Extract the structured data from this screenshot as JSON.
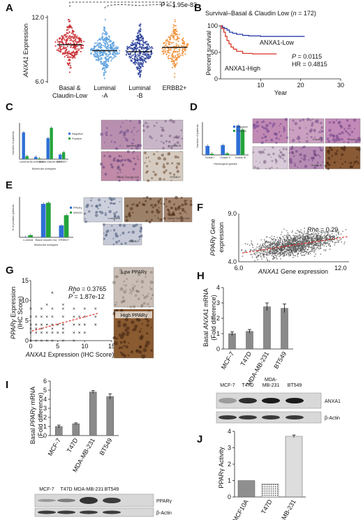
{
  "panels": [
    "A",
    "B",
    "C",
    "D",
    "E",
    "F",
    "G",
    "H",
    "I",
    "J"
  ],
  "panelA": {
    "ylabel_gene": "ANXA1",
    "ylabel_rest": " Expression",
    "yticks": [
      "12.0",
      "6.0"
    ],
    "pvalue": "P = 1.95e-83",
    "groups": [
      {
        "label1": "Basal &",
        "label2": "Claudin-Low",
        "color": "#c8282e",
        "median": 9.45,
        "n": 260
      },
      {
        "label1": "Luminal",
        "label2": "-A",
        "color": "#5aa0de",
        "median": 8.9,
        "n": 320
      },
      {
        "label1": "Luminal",
        "label2": "-B",
        "color": "#2a3f9a",
        "median": 8.8,
        "n": 320
      },
      {
        "label1": "ERBB2+",
        "label2": "",
        "color": "#f0903a",
        "median": 9.2,
        "n": 230
      }
    ]
  },
  "panelB": {
    "title_pre": "Survival–Basal & Claudin Low (",
    "title_n": "n",
    "title_post": " = 172)",
    "ylabel": "Percent survival",
    "yticks": [
      "100",
      "50",
      "0"
    ],
    "xticks": [
      "10",
      "20",
      "30"
    ],
    "xlabel": "Year",
    "low_label": "ANXA1-Low",
    "high_label": "ANXA1-High",
    "low_color": "#2a3fa8",
    "high_color": "#d9362a",
    "p_label": "P",
    "p_value": " = 0.0115",
    "hr": "HR = 0.4815"
  },
  "panelC": {
    "ylabel": "Number of patients",
    "xlabel": "Molecular subtypes",
    "cats": [
      "Luminal A",
      "Luminal B",
      "Basal claudin low",
      "ERBB2+"
    ],
    "neg": [
      7,
      0.6,
      5.5,
      1.2
    ],
    "pos": [
      0.8,
      0.2,
      8.2,
      1.8
    ],
    "legend": [
      "Negative",
      "Positive"
    ],
    "images": [
      "Luminal A",
      "Luminal B",
      "Basal Claudin low",
      "ERBB2+"
    ]
  },
  "panelD": {
    "ylabel": "Number of patients",
    "xlabel": "Histological grades",
    "cats": [
      "Grade I",
      "Grade II",
      "Grade III"
    ],
    "neg": [
      2.2,
      2.4,
      7.2
    ],
    "pos": [
      0.3,
      0.4,
      6.2
    ],
    "legend": [
      "Negative",
      "Positive"
    ],
    "images": [
      "Grade I",
      "Grade II",
      "Grade III"
    ]
  },
  "panelE": {
    "ylabel": "% of positive patients",
    "xlabel": "Molecular subtypes",
    "cats": [
      "Luminal",
      "Basal claudin low",
      "ERBB2+"
    ],
    "v1": [
      0.5,
      62,
      22
    ],
    "v2": [
      4,
      64,
      41
    ],
    "legend": [
      "PPARγ",
      "ANXA1"
    ],
    "images": [
      "Luminal A",
      "Basal Claudin low",
      "ERBB2+"
    ]
  },
  "panelF": {
    "rho": "Rho",
    "rho_value": " = 0.29",
    "p": "P",
    "p_value": " < 1e-128",
    "ylabel_gene": "PPARγ",
    "ylabel_rest": " Gene",
    "ylabel2": "expression",
    "xlabel_gene": "ANXA1",
    "xlabel_rest": " Gene expression",
    "xticks": [
      "6.0",
      "12.0"
    ],
    "yticks": [
      "9.0",
      "4.0"
    ],
    "point_color": "#555555",
    "trend_color": "#e0302a"
  },
  "panelG": {
    "rho": "Rho",
    "rho_value": " = 0.3765",
    "p": "P",
    "p_value": " = 1.87e-12",
    "ylabel_gene": "PPARγ",
    "ylabel_rest": " Expression",
    "ylabel2": "(IHC Score)",
    "xlabel_gene": "ANXA1",
    "xlabel_rest": " Expression (IHC Score)",
    "yticks": [
      "15",
      "10",
      "5",
      "0"
    ],
    "xticks": [
      "0",
      "5",
      "10",
      "15"
    ],
    "low_label": "Low PPARγ",
    "high_label": "High PPARγ"
  },
  "panelH": {
    "ylabel_pre": "Basal ",
    "ylabel_gene": "ANXA1",
    "ylabel_post": " mRNA",
    "ylabel2": "(Fold difference)",
    "yticks": [
      "4",
      "3",
      "2",
      "1",
      "0"
    ],
    "cats": [
      "MCF-7",
      "T47D",
      "MDA-MB-231",
      "BT549"
    ],
    "values": [
      1.0,
      1.15,
      2.75,
      2.65
    ],
    "errors": [
      0.12,
      0.12,
      0.25,
      0.28
    ]
  },
  "panelI": {
    "ylabel_pre": "Basal ",
    "ylabel_gene": "PPARγ",
    "ylabel_post": " mRNA",
    "ylabel2": "(Fold difference)",
    "yticks": [
      "6",
      "5",
      "4",
      "3",
      "2",
      "1",
      "0"
    ],
    "cats": [
      "MCF-7",
      "T47D",
      "MDA-MB-231",
      "BT549"
    ],
    "values": [
      1.0,
      1.3,
      4.8,
      4.3
    ],
    "errors": [
      0.15,
      0.1,
      0.15,
      0.3
    ],
    "blot_cols": [
      "MCF-7",
      "T47D",
      "MDA-MB-231",
      "BT549"
    ],
    "blot_rows": [
      "PPARγ",
      "β-Actin"
    ]
  },
  "blotTop": {
    "cols": [
      "MCF-7",
      "T47D",
      "MDA-MB-231",
      "BT549"
    ],
    "rows": [
      "ANXA1",
      "β-Actin"
    ]
  },
  "panelJ": {
    "ylabel": "PPARγ Activity",
    "yticks": [
      "4",
      "3",
      "2",
      "1",
      "0"
    ],
    "cats": [
      "MCF10A",
      "T47D",
      "MDA-MB-231"
    ],
    "values": [
      1.0,
      0.8,
      3.7
    ],
    "errors": [
      0,
      0,
      0.08
    ]
  }
}
